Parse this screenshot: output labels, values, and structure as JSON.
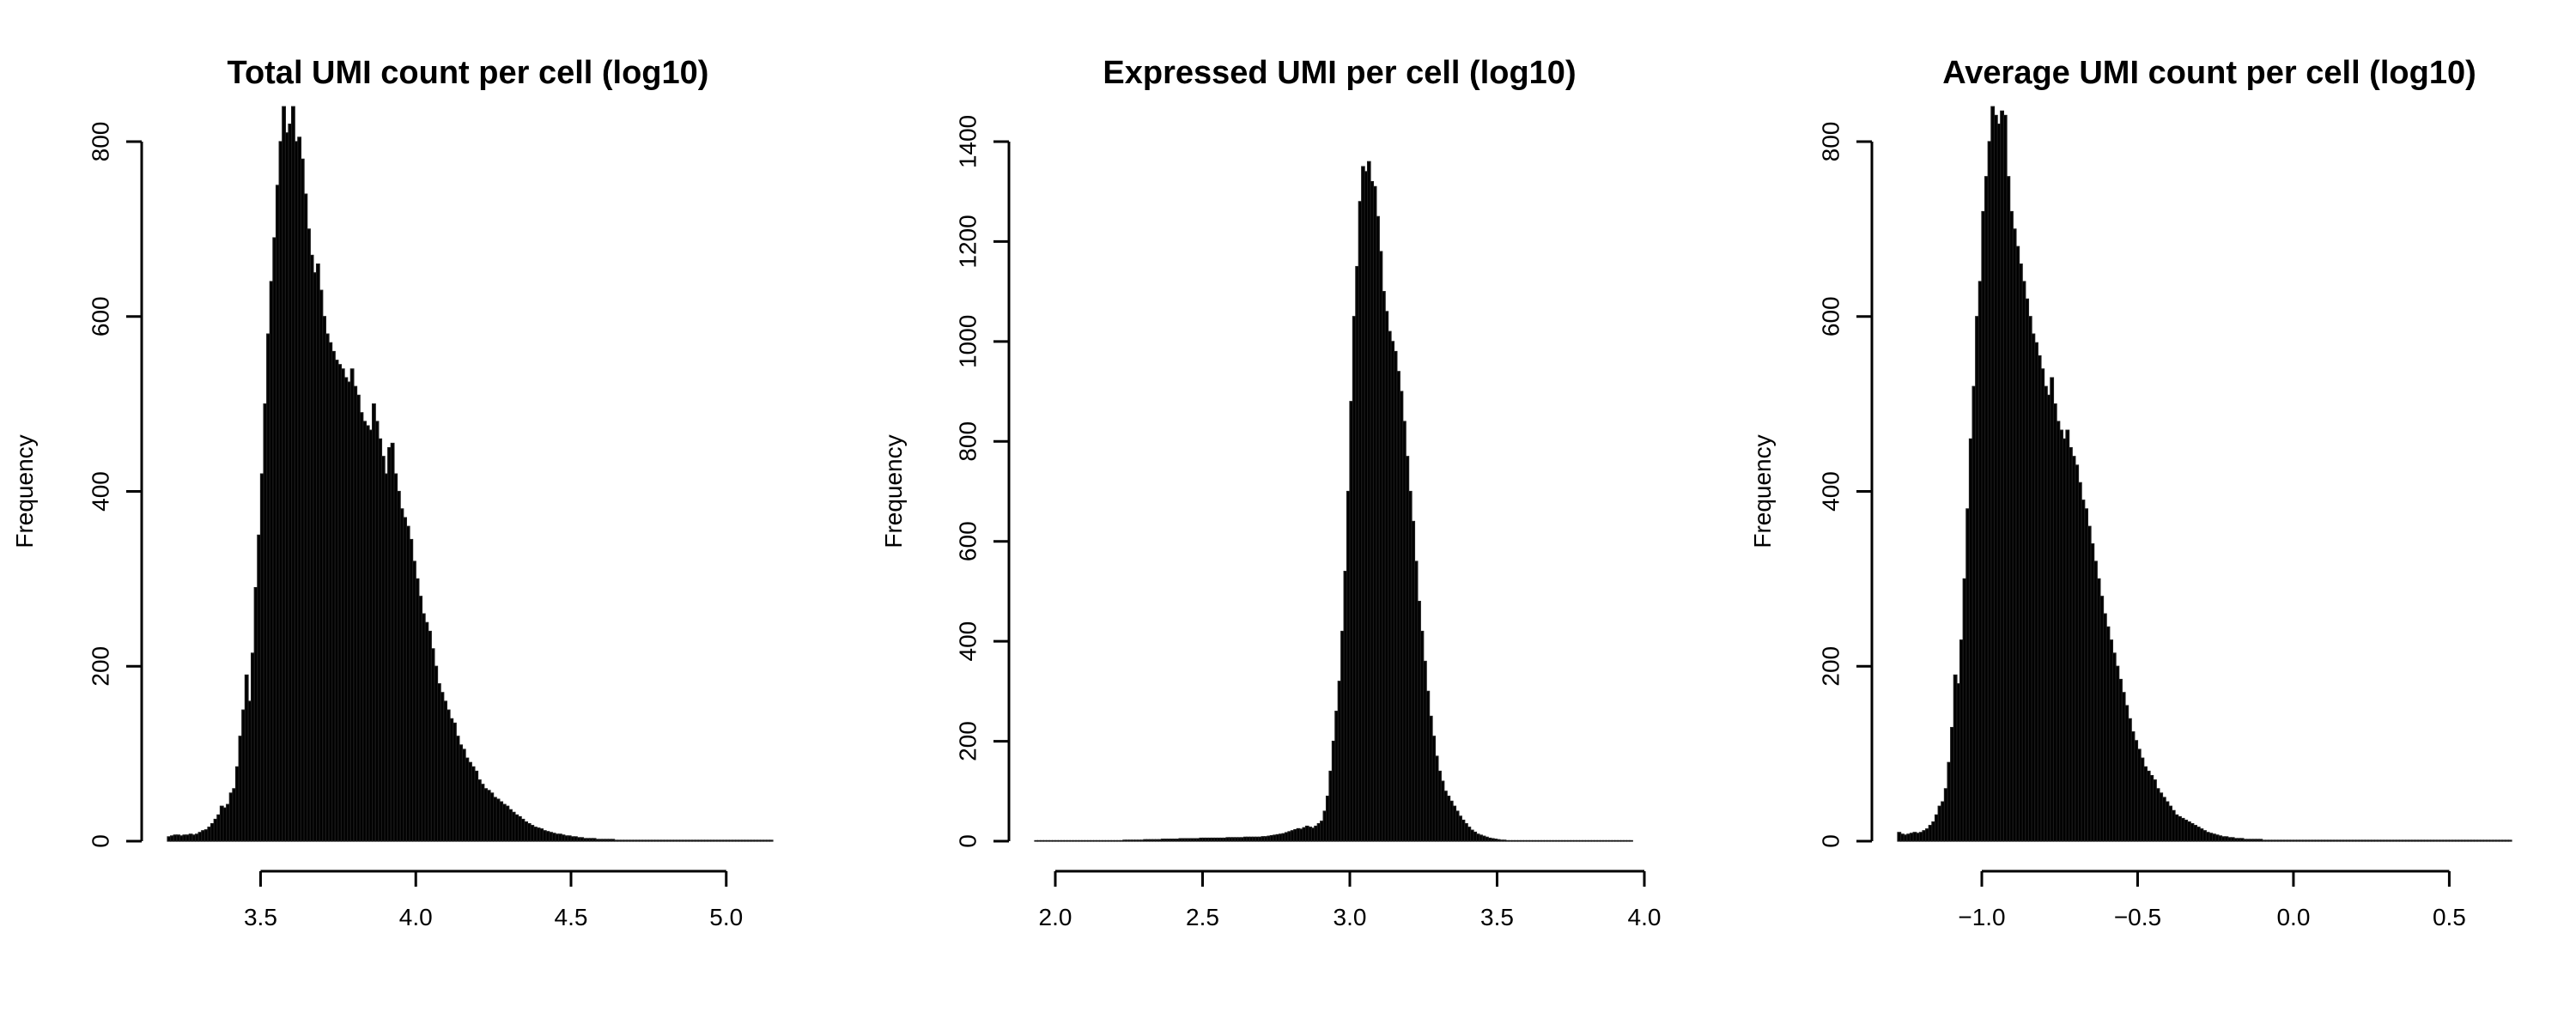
{
  "chart_data": [
    {
      "type": "bar",
      "title": "Total UMI count per cell (log10)",
      "ylabel": "Frequency",
      "xlabel": "",
      "xlim": [
        3.2,
        5.15
      ],
      "ylim": [
        0,
        800
      ],
      "x_ticks": [
        3.5,
        4.0,
        4.5,
        5.0
      ],
      "x_tick_labels": [
        "3.5",
        "4.0",
        "4.5",
        "5.0"
      ],
      "y_ticks": [
        0,
        200,
        400,
        600,
        800
      ],
      "y_tick_labels": [
        "0",
        "200",
        "400",
        "600",
        "800"
      ],
      "bin_width": 0.01,
      "x_start": 3.2,
      "values": [
        5,
        6,
        7,
        7,
        6,
        7,
        7,
        8,
        7,
        8,
        10,
        12,
        13,
        16,
        20,
        25,
        30,
        40,
        38,
        42,
        55,
        60,
        85,
        120,
        150,
        190,
        160,
        215,
        290,
        350,
        420,
        500,
        580,
        640,
        690,
        750,
        800,
        840,
        810,
        820,
        840,
        800,
        805,
        780,
        740,
        700,
        670,
        650,
        660,
        630,
        600,
        580,
        570,
        560,
        550,
        545,
        540,
        530,
        525,
        540,
        520,
        510,
        490,
        480,
        475,
        470,
        500,
        480,
        460,
        440,
        420,
        450,
        455,
        420,
        400,
        380,
        370,
        360,
        345,
        320,
        300,
        280,
        260,
        250,
        240,
        220,
        200,
        180,
        170,
        160,
        150,
        140,
        135,
        120,
        110,
        105,
        95,
        90,
        85,
        80,
        70,
        65,
        60,
        58,
        55,
        50,
        48,
        45,
        42,
        40,
        36,
        33,
        30,
        28,
        25,
        22,
        20,
        18,
        16,
        15,
        14,
        12,
        11,
        10,
        9,
        8,
        8,
        7,
        6,
        6,
        5,
        5,
        4,
        4,
        3,
        3,
        3,
        3,
        2,
        2,
        2,
        2,
        2,
        2,
        1,
        1,
        1,
        1,
        1,
        1,
        1,
        1,
        1,
        1,
        1,
        1,
        1,
        1,
        1,
        1,
        1,
        1,
        1,
        1,
        1,
        1,
        1,
        1,
        1,
        1,
        1,
        1,
        1,
        1,
        1,
        1,
        1,
        1,
        1,
        1,
        1,
        1,
        1,
        1,
        1,
        1,
        1,
        1,
        1,
        1,
        1,
        1,
        1,
        1,
        1
      ]
    },
    {
      "type": "bar",
      "title": "Expressed UMI per cell (log10)",
      "ylabel": "Frequency",
      "xlabel": "",
      "xlim": [
        1.93,
        4.0
      ],
      "ylim": [
        0,
        1400
      ],
      "x_ticks": [
        2.0,
        2.5,
        3.0,
        3.5,
        4.0
      ],
      "x_tick_labels": [
        "2.0",
        "2.5",
        "3.0",
        "3.5",
        "4.0"
      ],
      "y_ticks": [
        0,
        200,
        400,
        600,
        800,
        1000,
        1200,
        1400
      ],
      "y_tick_labels": [
        "0",
        "200",
        "400",
        "600",
        "800",
        "1000",
        "1200",
        "1400"
      ],
      "bin_width": 0.01,
      "x_start": 1.93,
      "values": [
        1,
        1,
        1,
        1,
        1,
        1,
        1,
        1,
        1,
        1,
        1,
        1,
        1,
        1,
        1,
        1,
        1,
        1,
        1,
        1,
        1,
        1,
        1,
        1,
        1,
        1,
        1,
        1,
        1,
        1,
        2,
        2,
        2,
        2,
        2,
        2,
        2,
        3,
        3,
        3,
        3,
        3,
        3,
        4,
        4,
        4,
        4,
        4,
        4,
        5,
        5,
        5,
        5,
        5,
        5,
        5,
        6,
        6,
        6,
        6,
        6,
        6,
        6,
        6,
        6,
        7,
        7,
        7,
        7,
        7,
        7,
        8,
        8,
        8,
        8,
        8,
        8,
        9,
        9,
        10,
        11,
        12,
        13,
        14,
        15,
        17,
        19,
        21,
        23,
        25,
        24,
        27,
        30,
        28,
        26,
        30,
        35,
        40,
        60,
        90,
        140,
        200,
        260,
        320,
        420,
        540,
        700,
        880,
        1050,
        1150,
        1280,
        1350,
        1340,
        1360,
        1320,
        1310,
        1250,
        1180,
        1100,
        1060,
        1020,
        1000,
        980,
        940,
        900,
        840,
        770,
        700,
        640,
        560,
        480,
        420,
        360,
        300,
        250,
        210,
        170,
        140,
        120,
        100,
        90,
        80,
        70,
        60,
        50,
        42,
        35,
        28,
        22,
        18,
        14,
        12,
        10,
        8,
        6,
        5,
        4,
        3,
        2,
        2,
        1,
        1,
        1,
        1,
        1,
        1,
        1,
        1,
        1,
        1,
        1,
        1,
        1,
        1,
        1,
        1,
        1,
        1,
        1,
        1,
        1,
        1,
        1,
        1,
        1,
        1,
        1,
        1,
        1,
        1,
        1,
        1,
        1,
        1,
        1,
        1,
        1,
        1,
        1,
        1,
        1,
        1,
        1
      ]
    },
    {
      "type": "bar",
      "title": "Average UMI count per cell (log10)",
      "ylabel": "Frequency",
      "xlabel": "",
      "xlim": [
        -1.27,
        0.7
      ],
      "ylim": [
        0,
        800
      ],
      "x_ticks": [
        -1.0,
        -0.5,
        0.0,
        0.5
      ],
      "x_tick_labels": [
        "−1.0",
        "−0.5",
        "0.0",
        "0.5"
      ],
      "y_ticks": [
        0,
        200,
        400,
        600,
        800
      ],
      "y_tick_labels": [
        "0",
        "200",
        "400",
        "600",
        "800"
      ],
      "bin_width": 0.01,
      "x_start": -1.27,
      "values": [
        10,
        8,
        7,
        8,
        9,
        10,
        9,
        10,
        12,
        14,
        18,
        22,
        30,
        40,
        45,
        60,
        90,
        130,
        190,
        180,
        230,
        300,
        380,
        460,
        520,
        600,
        640,
        720,
        760,
        800,
        840,
        830,
        820,
        835,
        830,
        760,
        720,
        700,
        680,
        660,
        640,
        620,
        600,
        580,
        570,
        555,
        540,
        520,
        510,
        530,
        500,
        480,
        470,
        460,
        470,
        450,
        440,
        430,
        410,
        390,
        380,
        360,
        340,
        320,
        300,
        280,
        260,
        245,
        230,
        215,
        200,
        185,
        170,
        155,
        140,
        125,
        115,
        105,
        95,
        85,
        80,
        75,
        70,
        60,
        55,
        50,
        45,
        40,
        35,
        30,
        28,
        26,
        24,
        22,
        20,
        18,
        16,
        14,
        12,
        10,
        9,
        8,
        7,
        6,
        5,
        5,
        4,
        4,
        3,
        3,
        3,
        2,
        2,
        2,
        2,
        2,
        2,
        1,
        1,
        1,
        1,
        1,
        1,
        1,
        1,
        1,
        1,
        1,
        1,
        1,
        1,
        1,
        1,
        1,
        1,
        1,
        1,
        1,
        1,
        1,
        1,
        1,
        1,
        1,
        1,
        1,
        1,
        1,
        1,
        1,
        1,
        1,
        1,
        1,
        1,
        1,
        1,
        1,
        1,
        1,
        1,
        1,
        1,
        1,
        1,
        1,
        1,
        1,
        1,
        1,
        1,
        1,
        1,
        1,
        1,
        1,
        1,
        1,
        1,
        1,
        1,
        1,
        1,
        1,
        1,
        1,
        1,
        1,
        1,
        1,
        1,
        1,
        1,
        1,
        1,
        1,
        1
      ]
    }
  ]
}
